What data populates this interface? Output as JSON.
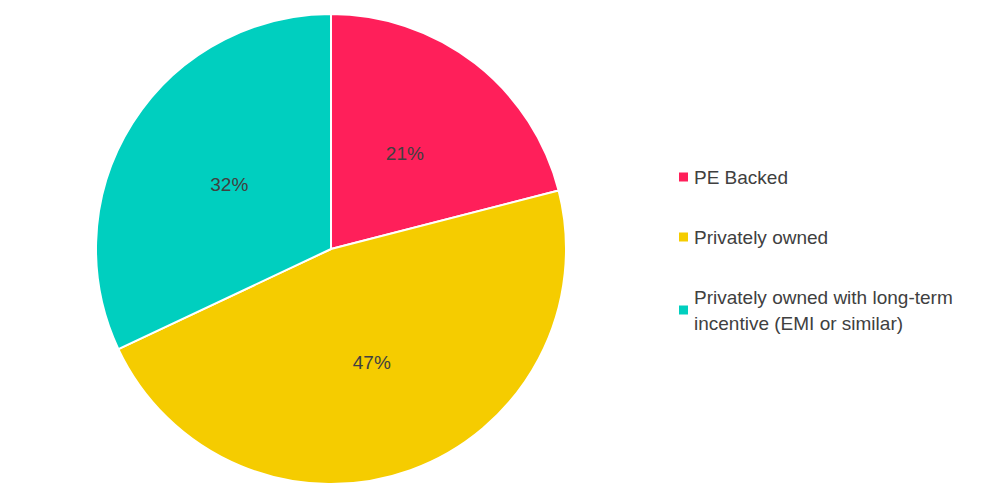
{
  "chart_data": {
    "type": "pie",
    "categories": [
      "PE Backed",
      "Privately owned",
      "Privately owned with long-term incentive (EMI or similar)"
    ],
    "values": [
      21,
      47,
      32
    ],
    "value_labels": [
      "21%",
      "47%",
      "32%"
    ],
    "colors": [
      "#ff1f5a",
      "#f5cc00",
      "#00cfbf"
    ],
    "data_labels": true,
    "legend": "right"
  }
}
